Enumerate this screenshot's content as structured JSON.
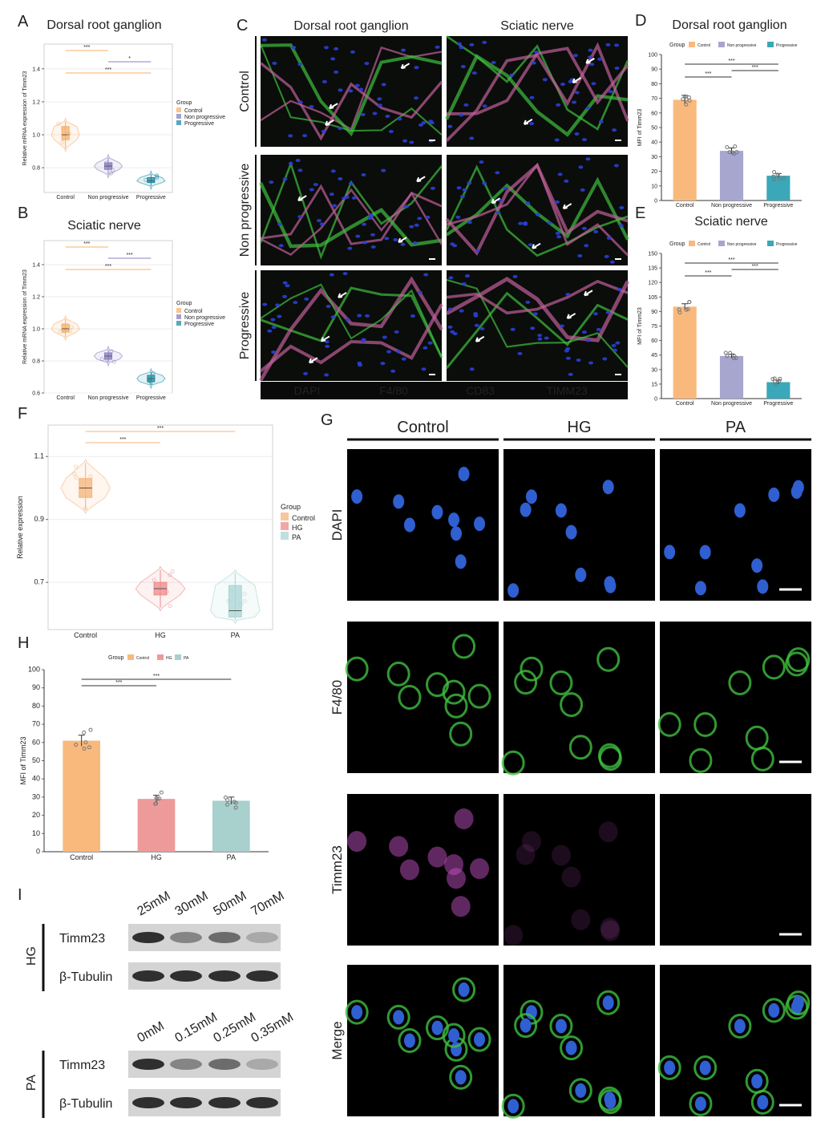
{
  "chart_data": [
    {
      "panel": "A",
      "type": "violin",
      "title": "Dorsal root ganglion",
      "ylabel": "Relative mRNA expression of Timm23",
      "categories": [
        "Control",
        "Non progressive",
        "Progressive"
      ],
      "colors": [
        "#f5b06a",
        "#8b7fc0",
        "#1f8ca6"
      ],
      "boxes": [
        {
          "min": 0.92,
          "q1": 0.97,
          "median": 1.0,
          "q3": 1.05,
          "max": 1.08
        },
        {
          "min": 0.76,
          "q1": 0.79,
          "median": 0.81,
          "q3": 0.83,
          "max": 0.86
        },
        {
          "min": 0.69,
          "q1": 0.71,
          "median": 0.72,
          "q3": 0.74,
          "max": 0.76
        }
      ],
      "ylim": [
        0.65,
        1.55
      ],
      "yticks": [
        0.8,
        {
          "value": 1,
          "label": "1.0"
        },
        1.2,
        1.4
      ],
      "grid": true,
      "legend_title": "Group",
      "legend": "right",
      "significance": [
        {
          "label": "***",
          "between": [
            "Control",
            "Non progressive"
          ]
        },
        {
          "label": "*",
          "between": [
            "Non progressive",
            "Progressive"
          ]
        },
        {
          "label": "***",
          "between": [
            "Control",
            "Progressive"
          ]
        }
      ]
    },
    {
      "panel": "B",
      "type": "violin",
      "title": "Sciatic nerve",
      "ylabel": "Relative mRNA expression of Timm23",
      "categories": [
        "Control",
        "Non progressive",
        "Progressive"
      ],
      "colors": [
        "#f5b06a",
        "#8b7fc0",
        "#1f8ca6"
      ],
      "boxes": [
        {
          "min": 0.95,
          "q1": 0.98,
          "median": 1.0,
          "q3": 1.03,
          "max": 1.06
        },
        {
          "min": 0.79,
          "q1": 0.81,
          "median": 0.83,
          "q3": 0.85,
          "max": 0.87
        },
        {
          "min": 0.65,
          "q1": 0.67,
          "median": 0.69,
          "q3": 0.71,
          "max": 0.73
        }
      ],
      "ylim": [
        0.6,
        1.55
      ],
      "yticks": [
        0.6,
        0.8,
        {
          "value": 1,
          "label": "1.0"
        },
        1.2,
        1.4
      ],
      "grid": true,
      "legend_title": "Group",
      "legend": "right",
      "significance": [
        {
          "label": "***",
          "between": [
            "Control",
            "Non progressive"
          ]
        },
        {
          "label": "***",
          "between": [
            "Non progressive",
            "Progressive"
          ]
        },
        {
          "label": "***",
          "between": [
            "Control",
            "Progressive"
          ]
        }
      ]
    },
    {
      "panel": "D",
      "type": "bar",
      "title": "Dorsal root ganglion",
      "ylabel": "MFI of Timm23",
      "categories": [
        "Control",
        "Non progressive",
        "Progressive"
      ],
      "colors": [
        "#f9b97c",
        "#a6a6cf",
        "#3aa8b8"
      ],
      "values": [
        69,
        34,
        17
      ],
      "errors": [
        3,
        2,
        1.5
      ],
      "ylim": [
        0,
        100
      ],
      "yticks": [
        0,
        10,
        20,
        30,
        40,
        50,
        60,
        70,
        80,
        90,
        100
      ],
      "grid": false,
      "legend_title": "Group",
      "legend": "top",
      "significance": [
        {
          "label": "***",
          "between": [
            "Control",
            "Progressive"
          ]
        },
        {
          "label": "***",
          "between": [
            "Non progressive",
            "Progressive"
          ]
        },
        {
          "label": "***",
          "between": [
            "Control",
            "Non progressive"
          ]
        }
      ]
    },
    {
      "panel": "E",
      "type": "bar",
      "title": "Sciatic nerve",
      "ylabel": "MFI of Timm23",
      "categories": [
        "Control",
        "Non progressive",
        "Progressive"
      ],
      "colors": [
        "#f9b97c",
        "#a6a6cf",
        "#3aa8b8"
      ],
      "values": [
        95,
        44,
        17
      ],
      "errors": [
        3,
        2,
        2
      ],
      "ylim": [
        0,
        150
      ],
      "yticks": [
        0,
        15,
        30,
        45,
        60,
        75,
        90,
        105,
        120,
        135,
        150
      ],
      "grid": false,
      "legend_title": "Group",
      "legend": "top",
      "significance": [
        {
          "label": "***",
          "between": [
            "Control",
            "Progressive"
          ]
        },
        {
          "label": "***",
          "between": [
            "Non progressive",
            "Progressive"
          ]
        },
        {
          "label": "***",
          "between": [
            "Control",
            "Non progressive"
          ]
        }
      ]
    },
    {
      "panel": "F",
      "type": "violin",
      "ylabel": "Relative expression",
      "categories": [
        "Control",
        "HG",
        "PA"
      ],
      "colors": [
        "#f5b47a",
        "#ec8a8a",
        "#a9d4d4"
      ],
      "boxes": [
        {
          "min": 0.93,
          "q1": 0.97,
          "median": 1.0,
          "q3": 1.03,
          "max": 1.08
        },
        {
          "min": 0.62,
          "q1": 0.66,
          "median": 0.68,
          "q3": 0.7,
          "max": 0.74
        },
        {
          "min": 0.58,
          "q1": 0.59,
          "median": 0.61,
          "q3": 0.69,
          "max": 0.73
        }
      ],
      "ylim": [
        0.55,
        1.2
      ],
      "yticks": [
        0.7,
        0.9,
        1.1
      ],
      "grid": true,
      "legend_title": "Group",
      "legend": "right",
      "significance": [
        {
          "label": "***",
          "between": [
            "Control",
            "PA"
          ]
        },
        {
          "label": "***",
          "between": [
            "Control",
            "HG"
          ]
        }
      ]
    },
    {
      "panel": "H",
      "type": "bar",
      "ylabel": "MFI of Timm23",
      "categories": [
        "Control",
        "HG",
        "PA"
      ],
      "colors": [
        "#f9b97c",
        "#ee9a9a",
        "#a8d0cc"
      ],
      "values": [
        61,
        29,
        28
      ],
      "errors": [
        3,
        2,
        2
      ],
      "ylim": [
        0,
        100
      ],
      "yticks": [
        0,
        10,
        20,
        30,
        40,
        50,
        60,
        70,
        80,
        90,
        100
      ],
      "grid": false,
      "legend_title": "Group",
      "legend": "top",
      "significance": [
        {
          "label": "***",
          "between": [
            "Control",
            "PA"
          ]
        },
        {
          "label": "***",
          "between": [
            "Control",
            "HG"
          ]
        }
      ]
    }
  ],
  "panel_c": {
    "panel": "C",
    "columns": [
      "Dorsal root ganglion",
      "Sciatic nerve"
    ],
    "rows": [
      "Control",
      "Non progressive",
      "Progressive"
    ],
    "channels": [
      {
        "name": "DAPI",
        "color": "#2b3fd6"
      },
      {
        "name": "F4/80",
        "color": "#3fbf3f"
      },
      {
        "name": "CD83",
        "color": "#d62b2b"
      },
      {
        "name": "TIMM23",
        "color": "#c0609a"
      }
    ]
  },
  "panel_g": {
    "panel": "G",
    "columns": [
      "Control",
      "HG",
      "PA"
    ],
    "rows": [
      {
        "name": "DAPI",
        "color": "#2f5fd0"
      },
      {
        "name": "F4/80",
        "color": "#3fbf3f"
      },
      {
        "name": "Timm23",
        "color": "#c050c0"
      },
      {
        "name": "Merge",
        "color": "#3a55b0"
      }
    ]
  },
  "panel_i": {
    "panel": "I",
    "groups": [
      {
        "name": "HG",
        "lanes": [
          "25mM",
          "30mM",
          "50mM",
          "70mM"
        ],
        "proteins": [
          "Timm23",
          "β-Tubulin"
        ]
      },
      {
        "name": "PA",
        "lanes": [
          "0mM",
          "0.15mM",
          "0.25mM",
          "0.35mM"
        ],
        "proteins": [
          "Timm23",
          "β-Tubulin"
        ]
      }
    ]
  }
}
